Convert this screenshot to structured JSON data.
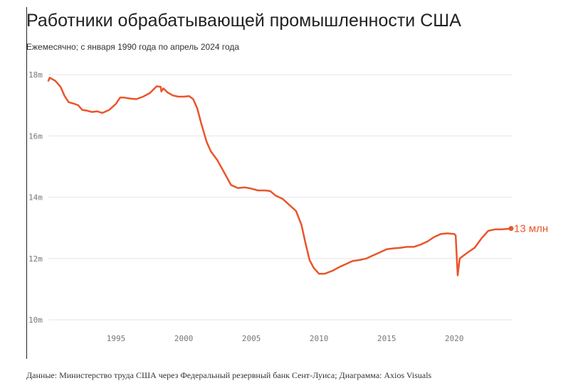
{
  "title": "Работники обрабатывающей промышленности США",
  "subtitle": "Ежемесячно; с января 1990 года по апрель 2024 года",
  "source": "Данные: Министерство труда США через Федеральный резервный банк Сент-Луиса; Диаграмма: Axios Visuals",
  "end_label": "13 млн",
  "colors": {
    "line": "#e9552a",
    "grid": "#e6e6e6",
    "tick_text": "#777777"
  },
  "chart_data": {
    "type": "line",
    "x_unit": "year",
    "y_unit": "millions",
    "xlim": [
      1990,
      2024.3
    ],
    "ylim": [
      10,
      18
    ],
    "yticks": [
      10,
      12,
      14,
      16,
      18
    ],
    "ytick_labels": [
      "10m",
      "12m",
      "14m",
      "16m",
      "18m"
    ],
    "xticks": [
      1995,
      2000,
      2005,
      2010,
      2015,
      2020
    ],
    "xtick_labels": [
      "1995",
      "2000",
      "2005",
      "2010",
      "2015",
      "2020"
    ],
    "grid": "horizontal",
    "series": [
      {
        "points": [
          [
            1990.0,
            17.8
          ],
          [
            1990.1,
            17.9
          ],
          [
            1990.5,
            17.8
          ],
          [
            1990.9,
            17.6
          ],
          [
            1991.2,
            17.3
          ],
          [
            1991.5,
            17.1
          ],
          [
            1991.9,
            17.05
          ],
          [
            1992.2,
            17.0
          ],
          [
            1992.5,
            16.85
          ],
          [
            1992.9,
            16.82
          ],
          [
            1993.2,
            16.78
          ],
          [
            1993.6,
            16.8
          ],
          [
            1994.0,
            16.75
          ],
          [
            1994.5,
            16.85
          ],
          [
            1995.0,
            17.05
          ],
          [
            1995.3,
            17.25
          ],
          [
            1995.6,
            17.25
          ],
          [
            1996.0,
            17.22
          ],
          [
            1996.5,
            17.2
          ],
          [
            1997.0,
            17.28
          ],
          [
            1997.5,
            17.4
          ],
          [
            1998.0,
            17.62
          ],
          [
            1998.3,
            17.6
          ],
          [
            1998.35,
            17.45
          ],
          [
            1998.5,
            17.55
          ],
          [
            1998.8,
            17.42
          ],
          [
            1999.2,
            17.32
          ],
          [
            1999.6,
            17.28
          ],
          [
            2000.0,
            17.28
          ],
          [
            2000.4,
            17.3
          ],
          [
            2000.7,
            17.2
          ],
          [
            2001.0,
            16.9
          ],
          [
            2001.3,
            16.4
          ],
          [
            2001.7,
            15.8
          ],
          [
            2002.0,
            15.5
          ],
          [
            2002.5,
            15.2
          ],
          [
            2003.0,
            14.8
          ],
          [
            2003.5,
            14.4
          ],
          [
            2004.0,
            14.3
          ],
          [
            2004.5,
            14.32
          ],
          [
            2005.0,
            14.28
          ],
          [
            2005.5,
            14.22
          ],
          [
            2006.0,
            14.22
          ],
          [
            2006.4,
            14.2
          ],
          [
            2006.8,
            14.05
          ],
          [
            2007.3,
            13.95
          ],
          [
            2007.8,
            13.75
          ],
          [
            2008.3,
            13.55
          ],
          [
            2008.7,
            13.1
          ],
          [
            2009.0,
            12.5
          ],
          [
            2009.3,
            11.95
          ],
          [
            2009.6,
            11.7
          ],
          [
            2010.0,
            11.5
          ],
          [
            2010.4,
            11.5
          ],
          [
            2011.0,
            11.6
          ],
          [
            2011.5,
            11.72
          ],
          [
            2012.0,
            11.82
          ],
          [
            2012.5,
            11.92
          ],
          [
            2013.0,
            11.95
          ],
          [
            2013.5,
            12.0
          ],
          [
            2014.0,
            12.1
          ],
          [
            2014.5,
            12.2
          ],
          [
            2015.0,
            12.3
          ],
          [
            2015.5,
            12.33
          ],
          [
            2016.0,
            12.35
          ],
          [
            2016.5,
            12.38
          ],
          [
            2017.0,
            12.38
          ],
          [
            2017.5,
            12.45
          ],
          [
            2018.0,
            12.55
          ],
          [
            2018.5,
            12.7
          ],
          [
            2019.0,
            12.8
          ],
          [
            2019.5,
            12.82
          ],
          [
            2020.0,
            12.8
          ],
          [
            2020.1,
            12.75
          ],
          [
            2020.25,
            11.45
          ],
          [
            2020.4,
            12.0
          ],
          [
            2020.7,
            12.1
          ],
          [
            2021.0,
            12.2
          ],
          [
            2021.5,
            12.35
          ],
          [
            2022.0,
            12.65
          ],
          [
            2022.5,
            12.9
          ],
          [
            2023.0,
            12.95
          ],
          [
            2023.5,
            12.95
          ],
          [
            2024.3,
            12.98
          ]
        ]
      }
    ]
  }
}
